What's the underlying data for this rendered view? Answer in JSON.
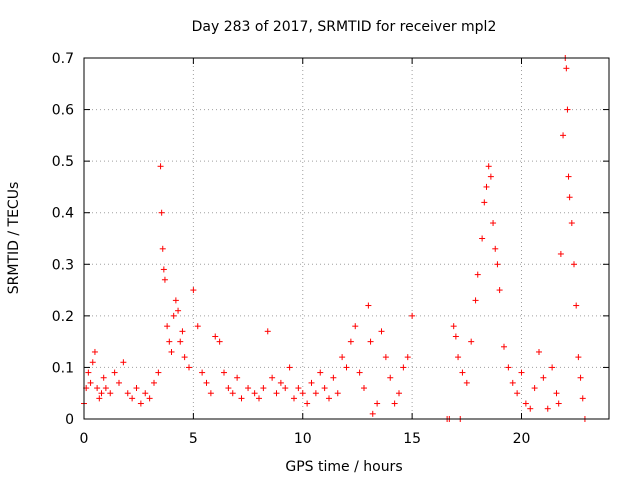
{
  "chart_data": {
    "type": "scatter",
    "title": "Day 283 of 2017, SRMTID for receiver mpl2",
    "xlabel": "GPS time / hours",
    "ylabel": "SRMTID / TECUs",
    "xlim": [
      0,
      24
    ],
    "ylim": [
      0,
      0.7
    ],
    "xticks": [
      0,
      5,
      10,
      15,
      20
    ],
    "xtick_labels": [
      "0",
      "5",
      "10",
      "15",
      "20"
    ],
    "yticks": [
      0,
      0.1,
      0.2,
      0.3,
      0.4,
      0.5,
      0.6,
      0.7
    ],
    "ytick_labels": [
      "0",
      "0.1",
      "0.2",
      "0.3",
      "0.4",
      "0.5",
      "0.6",
      "0.7"
    ],
    "grid": true,
    "marker": "+",
    "color": "#ff0000",
    "series": [
      {
        "points": [
          [
            0.0,
            0.03
          ],
          [
            0.1,
            0.06
          ],
          [
            0.2,
            0.09
          ],
          [
            0.3,
            0.07
          ],
          [
            0.4,
            0.11
          ],
          [
            0.5,
            0.13
          ],
          [
            0.6,
            0.06
          ],
          [
            0.7,
            0.04
          ],
          [
            0.8,
            0.05
          ],
          [
            0.9,
            0.08
          ],
          [
            1.0,
            0.06
          ],
          [
            1.2,
            0.05
          ],
          [
            1.4,
            0.09
          ],
          [
            1.6,
            0.07
          ],
          [
            1.8,
            0.11
          ],
          [
            2.0,
            0.05
          ],
          [
            2.2,
            0.04
          ],
          [
            2.4,
            0.06
          ],
          [
            2.6,
            0.03
          ],
          [
            2.8,
            0.05
          ],
          [
            3.0,
            0.04
          ],
          [
            3.2,
            0.07
          ],
          [
            3.4,
            0.09
          ],
          [
            3.5,
            0.49
          ],
          [
            3.55,
            0.4
          ],
          [
            3.6,
            0.33
          ],
          [
            3.65,
            0.29
          ],
          [
            3.7,
            0.27
          ],
          [
            3.8,
            0.18
          ],
          [
            3.9,
            0.15
          ],
          [
            4.0,
            0.13
          ],
          [
            4.1,
            0.2
          ],
          [
            4.2,
            0.23
          ],
          [
            4.3,
            0.21
          ],
          [
            4.4,
            0.15
          ],
          [
            4.5,
            0.17
          ],
          [
            4.6,
            0.12
          ],
          [
            4.8,
            0.1
          ],
          [
            5.0,
            0.25
          ],
          [
            5.2,
            0.18
          ],
          [
            5.4,
            0.09
          ],
          [
            5.6,
            0.07
          ],
          [
            5.8,
            0.05
          ],
          [
            6.0,
            0.16
          ],
          [
            6.2,
            0.15
          ],
          [
            6.4,
            0.09
          ],
          [
            6.6,
            0.06
          ],
          [
            6.8,
            0.05
          ],
          [
            7.0,
            0.08
          ],
          [
            7.2,
            0.04
          ],
          [
            7.5,
            0.06
          ],
          [
            7.8,
            0.05
          ],
          [
            8.0,
            0.04
          ],
          [
            8.2,
            0.06
          ],
          [
            8.4,
            0.17
          ],
          [
            8.6,
            0.08
          ],
          [
            8.8,
            0.05
          ],
          [
            9.0,
            0.07
          ],
          [
            9.2,
            0.06
          ],
          [
            9.4,
            0.1
          ],
          [
            9.6,
            0.04
          ],
          [
            9.8,
            0.06
          ],
          [
            10.0,
            0.05
          ],
          [
            10.2,
            0.03
          ],
          [
            10.4,
            0.07
          ],
          [
            10.6,
            0.05
          ],
          [
            10.8,
            0.09
          ],
          [
            11.0,
            0.06
          ],
          [
            11.2,
            0.04
          ],
          [
            11.4,
            0.08
          ],
          [
            11.6,
            0.05
          ],
          [
            11.8,
            0.12
          ],
          [
            12.0,
            0.1
          ],
          [
            12.2,
            0.15
          ],
          [
            12.4,
            0.18
          ],
          [
            12.6,
            0.09
          ],
          [
            12.8,
            0.06
          ],
          [
            13.0,
            0.22
          ],
          [
            13.1,
            0.15
          ],
          [
            13.2,
            0.01
          ],
          [
            13.4,
            0.03
          ],
          [
            13.6,
            0.17
          ],
          [
            13.8,
            0.12
          ],
          [
            14.0,
            0.08
          ],
          [
            14.2,
            0.03
          ],
          [
            14.4,
            0.05
          ],
          [
            14.6,
            0.1
          ],
          [
            14.8,
            0.12
          ],
          [
            15.0,
            0.2
          ],
          [
            16.6,
            0.0
          ],
          [
            16.7,
            0.0
          ],
          [
            16.9,
            0.18
          ],
          [
            17.0,
            0.16
          ],
          [
            17.1,
            0.12
          ],
          [
            17.2,
            0.0
          ],
          [
            17.3,
            0.09
          ],
          [
            17.5,
            0.07
          ],
          [
            17.7,
            0.15
          ],
          [
            17.9,
            0.23
          ],
          [
            18.0,
            0.28
          ],
          [
            18.2,
            0.35
          ],
          [
            18.3,
            0.42
          ],
          [
            18.4,
            0.45
          ],
          [
            18.5,
            0.49
          ],
          [
            18.6,
            0.47
          ],
          [
            18.7,
            0.38
          ],
          [
            18.8,
            0.33
          ],
          [
            18.9,
            0.3
          ],
          [
            19.0,
            0.25
          ],
          [
            19.2,
            0.14
          ],
          [
            19.4,
            0.1
          ],
          [
            19.6,
            0.07
          ],
          [
            19.8,
            0.05
          ],
          [
            20.0,
            0.09
          ],
          [
            20.2,
            0.03
          ],
          [
            20.4,
            0.02
          ],
          [
            20.6,
            0.06
          ],
          [
            20.8,
            0.13
          ],
          [
            21.0,
            0.08
          ],
          [
            21.2,
            0.02
          ],
          [
            21.4,
            0.1
          ],
          [
            21.6,
            0.05
          ],
          [
            21.7,
            0.03
          ],
          [
            21.8,
            0.32
          ],
          [
            21.9,
            0.55
          ],
          [
            22.0,
            0.7
          ],
          [
            22.05,
            0.68
          ],
          [
            22.1,
            0.6
          ],
          [
            22.15,
            0.47
          ],
          [
            22.2,
            0.43
          ],
          [
            22.3,
            0.38
          ],
          [
            22.4,
            0.3
          ],
          [
            22.5,
            0.22
          ],
          [
            22.6,
            0.12
          ],
          [
            22.7,
            0.08
          ],
          [
            22.8,
            0.04
          ],
          [
            22.9,
            0.0
          ]
        ]
      }
    ]
  }
}
